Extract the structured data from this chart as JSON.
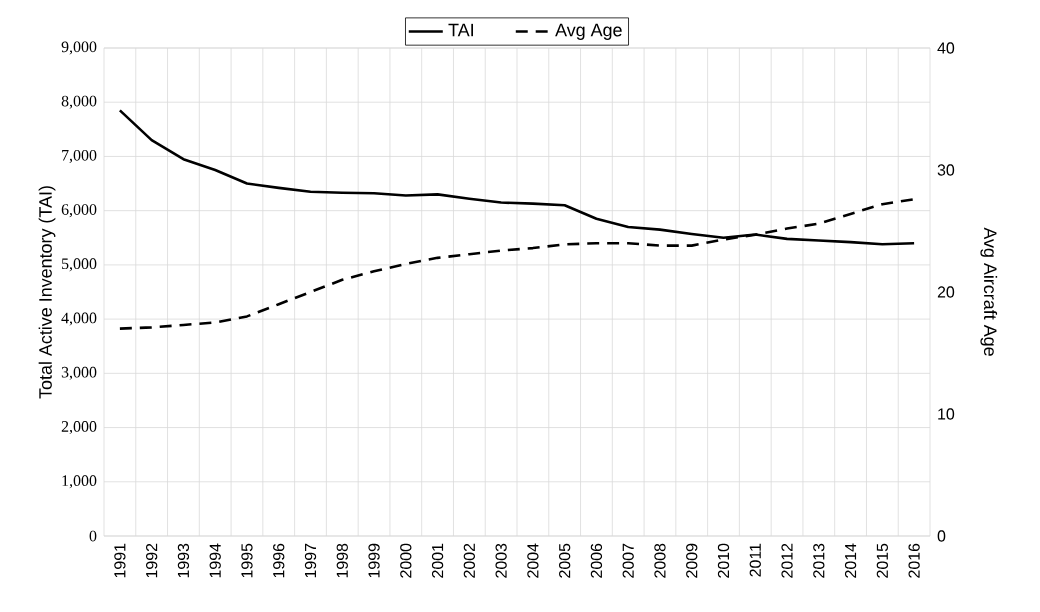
{
  "chart_data": {
    "type": "line",
    "categories": [
      "1991",
      "1992",
      "1993",
      "1994",
      "1995",
      "1996",
      "1997",
      "1998",
      "1999",
      "2000",
      "2001",
      "2002",
      "2003",
      "2004",
      "2005",
      "2006",
      "2007",
      "2008",
      "2009",
      "2010",
      "2011",
      "2012",
      "2013",
      "2014",
      "2015",
      "2016"
    ],
    "series": [
      {
        "name": "TAI",
        "color": "#000000",
        "line_style": "solid",
        "values": [
          7850,
          7300,
          6950,
          6750,
          6500,
          6420,
          6350,
          6330,
          6320,
          6280,
          6300,
          6220,
          6150,
          6130,
          6100,
          5850,
          5700,
          5650,
          5570,
          5500,
          5560,
          5480,
          5450,
          5420,
          5380,
          5400
        ]
      },
      {
        "name": "Avg Age",
        "color": "#000000",
        "line_style": "dashed",
        "axis": "y2",
        "values": [
          17.0,
          17.1,
          17.3,
          17.5,
          18.0,
          19.0,
          20.0,
          21.0,
          21.7,
          22.3,
          22.8,
          23.1,
          23.4,
          23.6,
          23.9,
          24.0,
          24.0,
          23.8,
          23.8,
          24.3,
          24.7,
          25.2,
          25.6,
          26.4,
          27.2,
          27.6
        ]
      }
    ],
    "ylabel": "Total Active Inventory (TAI)",
    "y2label": "Avg Aircraft Age",
    "ylim": [
      0,
      9000
    ],
    "yticks": [
      0,
      {
        "value": 1000,
        "label": "1,000"
      },
      {
        "value": 2000,
        "label": "2,000"
      },
      {
        "value": 3000,
        "label": "3,000"
      },
      {
        "value": 4000,
        "label": "4,000"
      },
      {
        "value": 5000,
        "label": "5,000"
      },
      {
        "value": 6000,
        "label": "6,000"
      },
      {
        "value": 7000,
        "label": "7,000"
      },
      {
        "value": 8000,
        "label": "8,000"
      },
      {
        "value": 9000,
        "label": "9,000"
      }
    ],
    "y2lim": [
      0,
      40
    ],
    "y2ticks": [
      0,
      10,
      20,
      30,
      40
    ],
    "grid": true,
    "legend": "top",
    "marker": "none"
  }
}
